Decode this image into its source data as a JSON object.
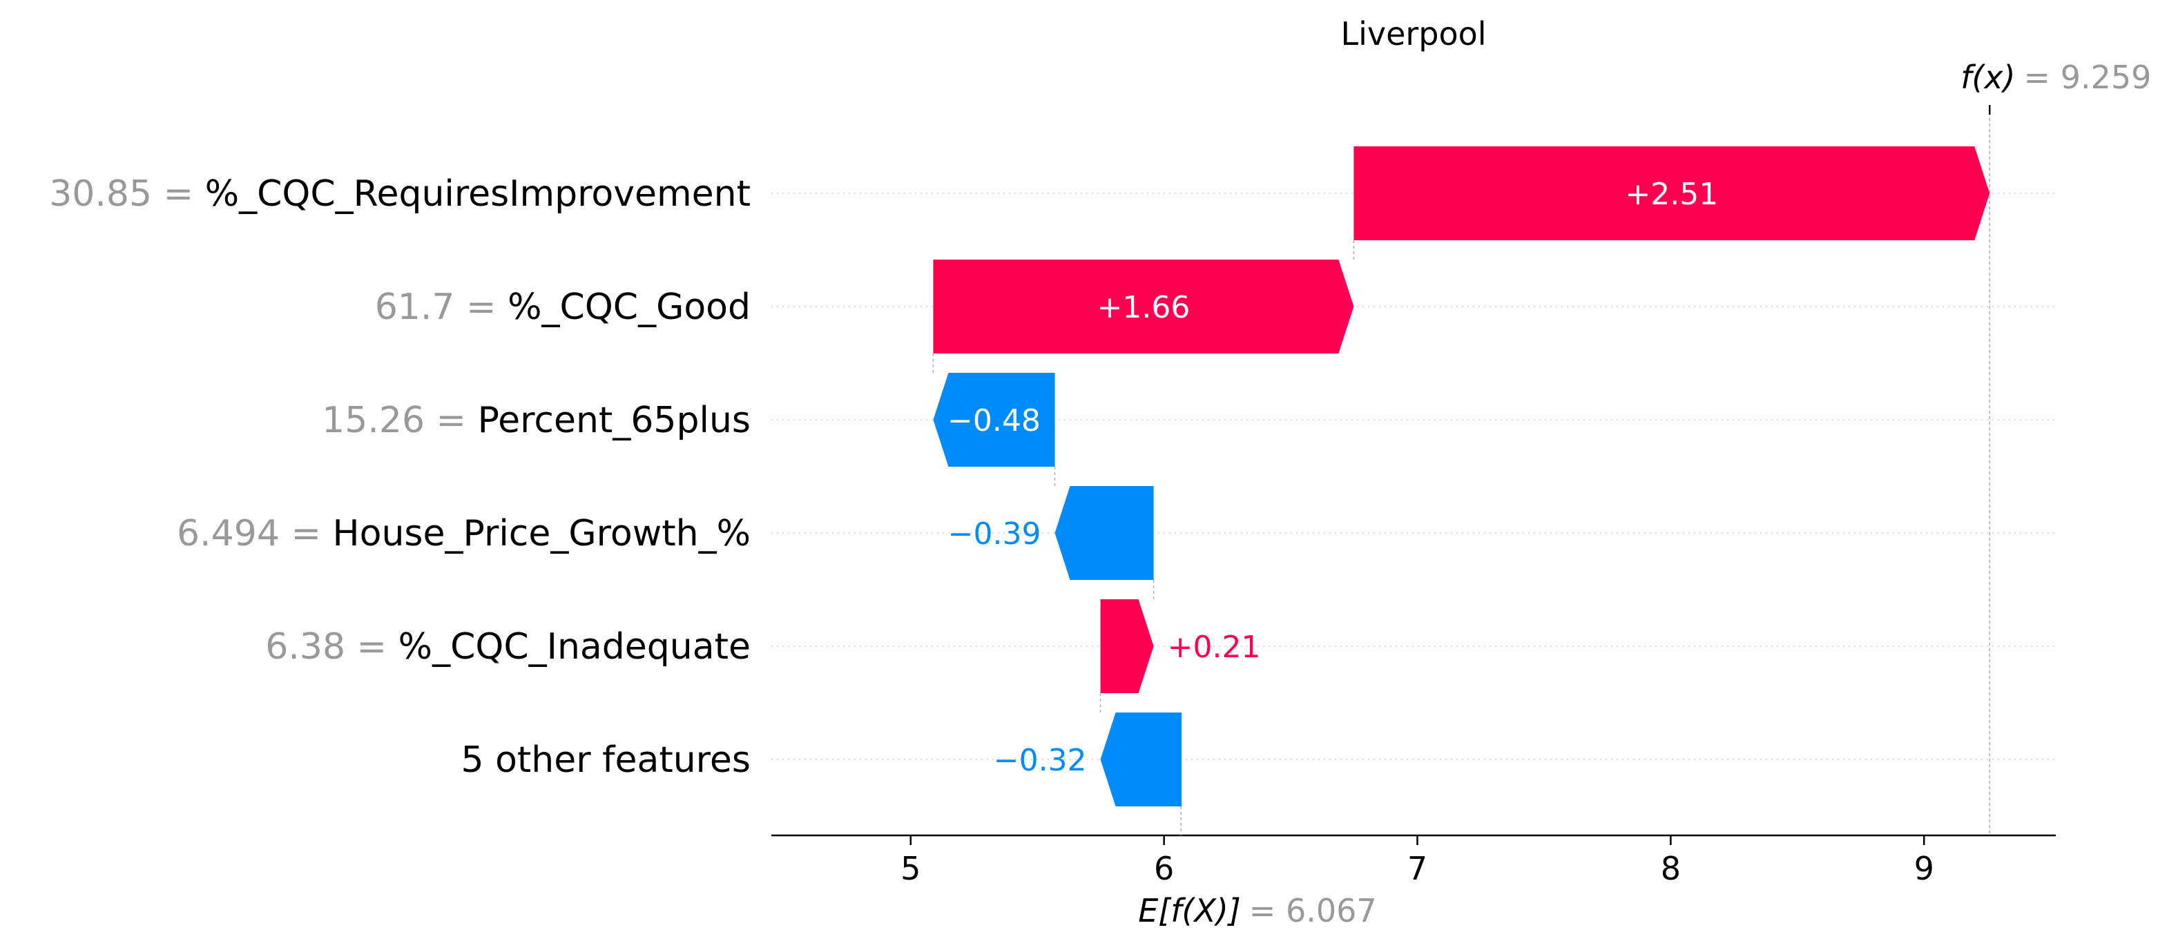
{
  "chart_data": {
    "type": "waterfall",
    "title": "Liverpool",
    "base_value": 6.067,
    "base_value_label": "= 6.067",
    "base_value_name": "E[f(X)]",
    "output_value": 9.259,
    "output_value_label": "= 9.259",
    "output_value_name": "f(x)",
    "xlim": [
      4.45,
      9.52
    ],
    "x_ticks": [
      5,
      6,
      7,
      8,
      9
    ],
    "x_tick_labels": [
      "5",
      "6",
      "7",
      "8",
      "9"
    ],
    "rows": [
      {
        "value": "30.85",
        "feature": "%_CQC_RequiresImprovement",
        "contribution": 2.51,
        "label": "+2.51"
      },
      {
        "value": "61.7",
        "feature": "%_CQC_Good",
        "contribution": 1.66,
        "label": "+1.66"
      },
      {
        "value": "15.26",
        "feature": "Percent_65plus",
        "contribution": -0.48,
        "label": "−0.48"
      },
      {
        "value": "6.494",
        "feature": "House_Price_Growth_%",
        "contribution": -0.39,
        "label": "−0.39"
      },
      {
        "value": "6.38",
        "feature": "%_CQC_Inadequate",
        "contribution": 0.21,
        "label": "+0.21"
      },
      {
        "value": "",
        "feature": "5 other features",
        "contribution": -0.32,
        "label": "−0.32"
      }
    ],
    "colors": {
      "positive": "#ff0051",
      "negative": "#008bfb",
      "value_text": "#999999",
      "grid": "#cccccc"
    }
  }
}
